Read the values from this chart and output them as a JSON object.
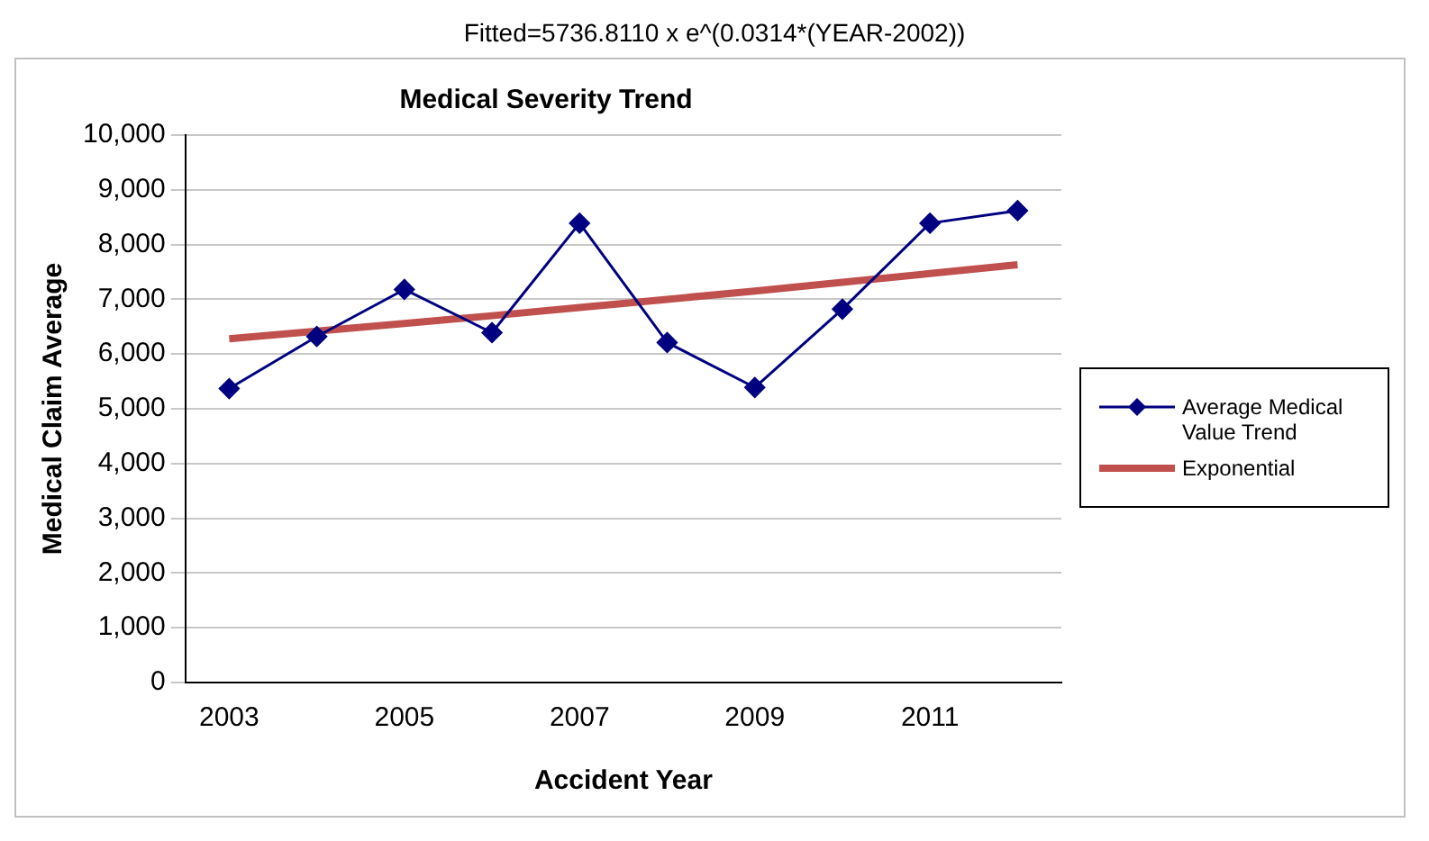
{
  "chart_data": {
    "type": "line",
    "title": "Medical Severity Trend",
    "subtitle": "Fitted=5736.8110 x e^(0.0314*(YEAR-2002))",
    "xlabel": "Accident Year",
    "ylabel": "Medical Claim Average",
    "categories": [
      "2003",
      null,
      "2005",
      null,
      "2007",
      null,
      "2009",
      null,
      "2011",
      null
    ],
    "series": [
      {
        "name": "Average Medical Value Trend",
        "color": "#000080",
        "values": [
          5370,
          6320,
          7180,
          6390,
          8390,
          6210,
          5390,
          6820,
          8390,
          8620
        ],
        "marker": "diamond",
        "line_style": "solid"
      },
      {
        "name": "Exponential",
        "color": "#c0504d",
        "values": [
          6280,
          6420,
          6560,
          6700,
          6850,
          7000,
          7150,
          7310,
          7470,
          7630
        ],
        "marker": "none",
        "line_style": "solid"
      }
    ],
    "ylim": [
      0,
      10000
    ],
    "yticks": [
      0,
      {
        "value": 1000,
        "label": "1,000"
      },
      {
        "value": 2000,
        "label": "2,000"
      },
      {
        "value": 3000,
        "label": "3,000"
      },
      {
        "value": 4000,
        "label": "4,000"
      },
      {
        "value": 5000,
        "label": "5,000"
      },
      {
        "value": 6000,
        "label": "6,000"
      },
      {
        "value": 7000,
        "label": "7,000"
      },
      {
        "value": 8000,
        "label": "8,000"
      },
      {
        "value": 9000,
        "label": "9,000"
      },
      {
        "value": 10000,
        "label": "10,000"
      }
    ],
    "grid": "y",
    "legend": "right"
  }
}
